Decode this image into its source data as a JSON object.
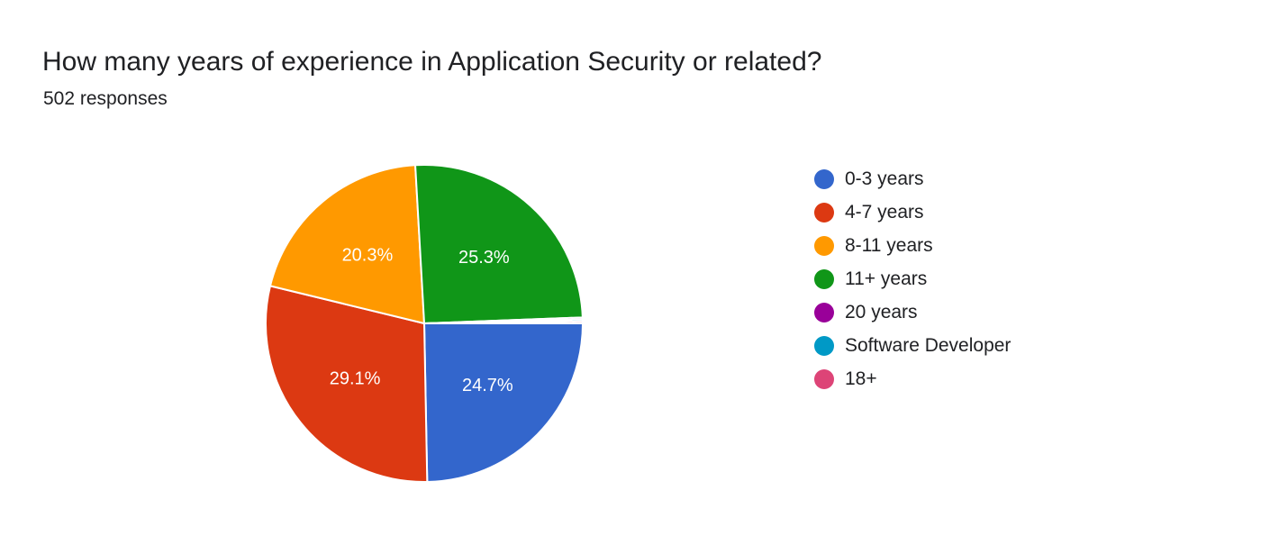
{
  "header": {
    "title": "How many years of experience in Application Security or related?",
    "subtitle": "502 responses"
  },
  "chart_data": {
    "type": "pie",
    "title": "How many years of experience in Application Security or related?",
    "subtitle": "502 responses",
    "legend_position": "right",
    "slices": [
      {
        "name": "0-3 years",
        "percent": 24.7,
        "label": "24.7%",
        "color": "#3366cc"
      },
      {
        "name": "4-7 years",
        "percent": 29.1,
        "label": "29.1%",
        "color": "#dc3912"
      },
      {
        "name": "8-11 years",
        "percent": 20.3,
        "label": "20.3%",
        "color": "#ff9900"
      },
      {
        "name": "11+ years",
        "percent": 25.3,
        "label": "25.3%",
        "color": "#109618"
      },
      {
        "name": "20 years",
        "percent": 0.2,
        "label": "",
        "color": "#990099"
      },
      {
        "name": "Software Developer",
        "percent": 0.2,
        "label": "",
        "color": "#0099c6"
      },
      {
        "name": "18+",
        "percent": 0.2,
        "label": "",
        "color": "#dd4477"
      }
    ]
  }
}
